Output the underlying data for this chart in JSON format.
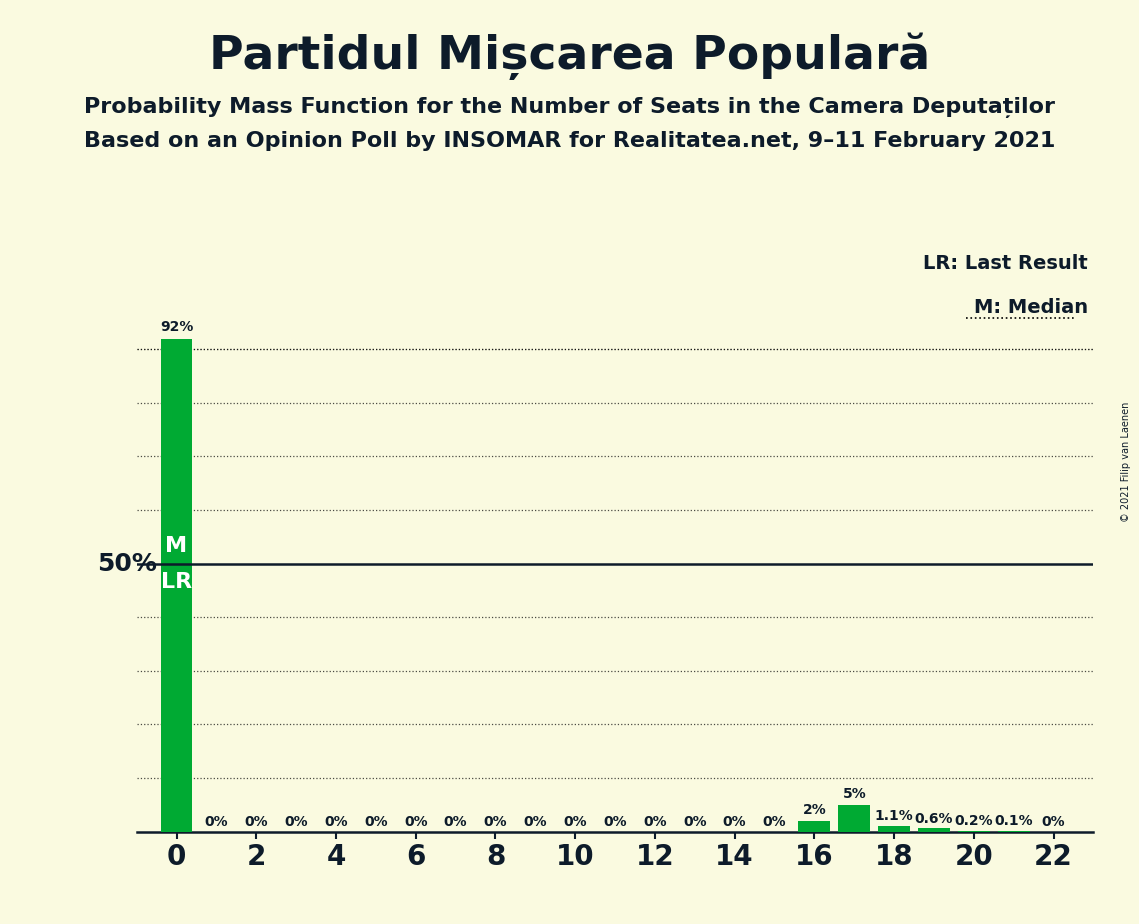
{
  "title": "Partidul Mișcarea Populară",
  "subtitle1": "Probability Mass Function for the Number of Seats in the Camera Deputaților",
  "subtitle2": "Based on an Opinion Poll by INSOMAR for Realitatea.net, 9–11 February 2021",
  "copyright": "© 2021 Filip van Laenen",
  "background_color": "#fafae0",
  "bar_color": "#00aa33",
  "text_color": "#0d1b2a",
  "seats": [
    0,
    1,
    2,
    3,
    4,
    5,
    6,
    7,
    8,
    9,
    10,
    11,
    12,
    13,
    14,
    15,
    16,
    17,
    18,
    19,
    20,
    21,
    22
  ],
  "probabilities": [
    0.92,
    0.0,
    0.0,
    0.0,
    0.0,
    0.0,
    0.0,
    0.0,
    0.0,
    0.0,
    0.0,
    0.0,
    0.0,
    0.0,
    0.0,
    0.0,
    0.02,
    0.05,
    0.011,
    0.006,
    0.002,
    0.001,
    0.0
  ],
  "bar_labels": [
    "92%",
    "0%",
    "0%",
    "0%",
    "0%",
    "0%",
    "0%",
    "0%",
    "0%",
    "0%",
    "0%",
    "0%",
    "0%",
    "0%",
    "0%",
    "0%",
    "2%",
    "5%",
    "1.1%",
    "0.6%",
    "0.2%",
    "0.1%",
    "0%"
  ],
  "median": 0,
  "last_result": 0,
  "median_label": "M",
  "last_result_label": "LR",
  "ylim": [
    0,
    1.0
  ],
  "ylabel_50": "50%",
  "yticks_dotted": [
    0.1,
    0.2,
    0.3,
    0.4,
    0.6,
    0.7,
    0.8,
    0.9
  ],
  "ytick_top_dotted": 0.9,
  "xticks": [
    0,
    2,
    4,
    6,
    8,
    10,
    12,
    14,
    16,
    18,
    20,
    22
  ],
  "legend_lr": "LR: Last Result",
  "legend_m": "M: Median",
  "title_fontsize": 34,
  "subtitle_fontsize": 16,
  "axis_fontsize": 20,
  "label_fontsize": 10,
  "legend_fontsize": 14,
  "ylabel_fontsize": 18
}
